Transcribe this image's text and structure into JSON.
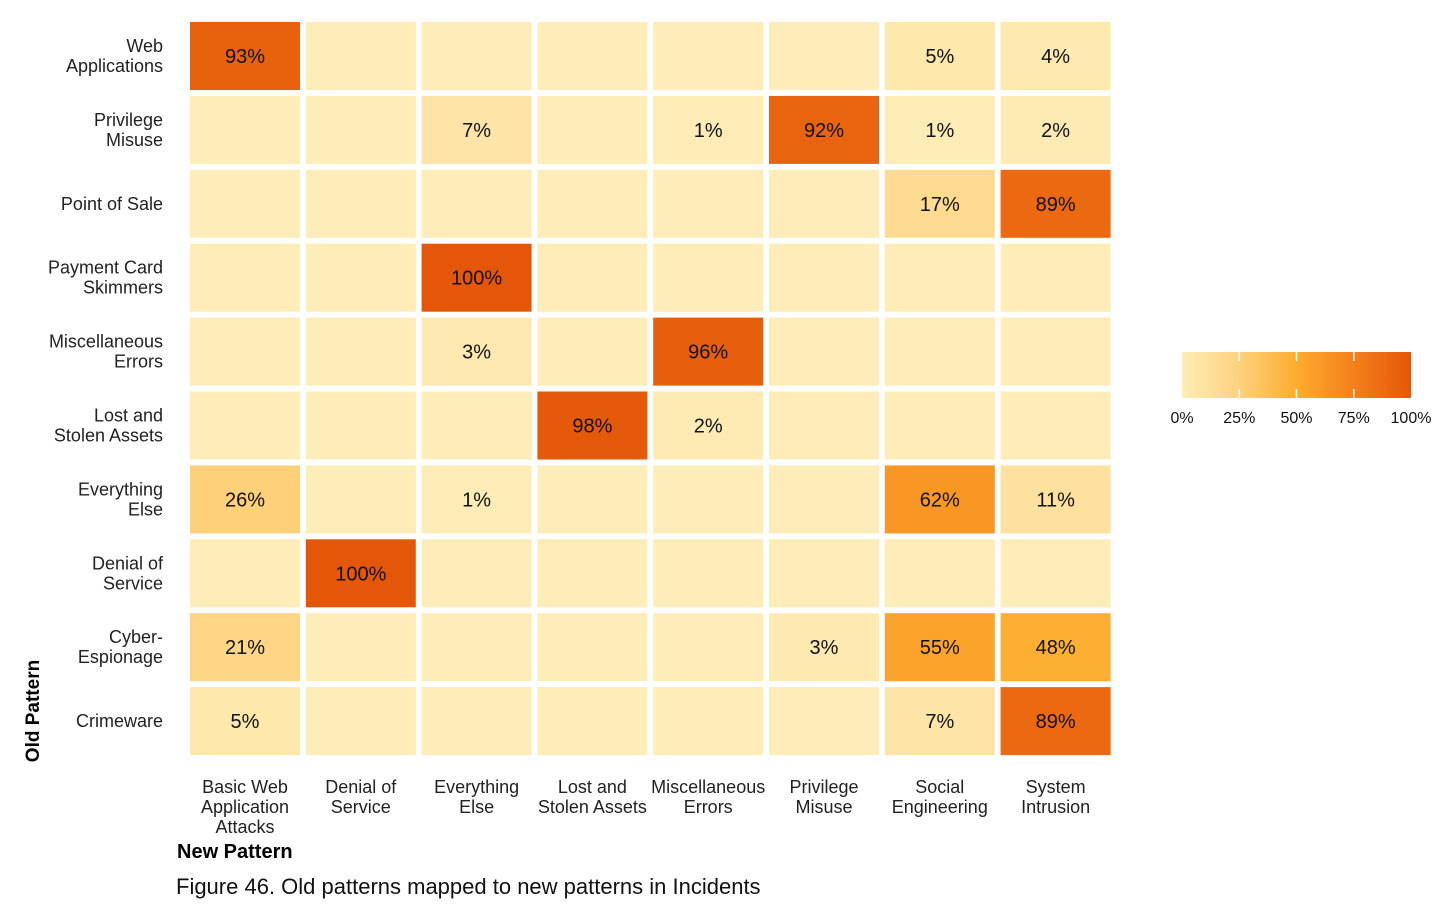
{
  "chart_data": {
    "type": "heatmap",
    "title": "Figure 46. Old patterns mapped to new patterns in Incidents",
    "xlabel": "New Pattern",
    "ylabel": "Old Pattern",
    "x_categories": [
      [
        "Basic Web",
        "Application",
        "Attacks"
      ],
      [
        "Denial of",
        "Service"
      ],
      [
        "Everything",
        "Else"
      ],
      [
        "Lost and",
        "Stolen Assets"
      ],
      [
        "Miscellaneous",
        "Errors"
      ],
      [
        "Privilege",
        "Misuse"
      ],
      [
        "Social",
        "Engineering"
      ],
      [
        "System",
        "Intrusion"
      ]
    ],
    "y_categories": [
      [
        "Web",
        "Applications"
      ],
      [
        "Privilege",
        "Misuse"
      ],
      [
        "Point of Sale"
      ],
      [
        "Payment Card",
        "Skimmers"
      ],
      [
        "Miscellaneous",
        "Errors"
      ],
      [
        "Lost and",
        "Stolen Assets"
      ],
      [
        "Everything",
        "Else"
      ],
      [
        "Denial of",
        "Service"
      ],
      [
        "Cyber-",
        "Espionage"
      ],
      [
        "Crimeware"
      ]
    ],
    "unit": "%",
    "values": [
      [
        93,
        null,
        null,
        null,
        null,
        null,
        5,
        4
      ],
      [
        null,
        null,
        7,
        null,
        1,
        92,
        1,
        2
      ],
      [
        null,
        null,
        null,
        null,
        null,
        null,
        17,
        89
      ],
      [
        null,
        null,
        100,
        null,
        null,
        null,
        null,
        null
      ],
      [
        null,
        null,
        3,
        null,
        96,
        null,
        null,
        null
      ],
      [
        null,
        null,
        null,
        98,
        2,
        null,
        null,
        null
      ],
      [
        26,
        null,
        1,
        null,
        null,
        null,
        62,
        11
      ],
      [
        null,
        100,
        null,
        null,
        null,
        null,
        null,
        null
      ],
      [
        21,
        null,
        null,
        null,
        null,
        3,
        55,
        48
      ],
      [
        5,
        null,
        null,
        null,
        null,
        null,
        7,
        89
      ]
    ],
    "color_scale": {
      "min": 0,
      "max": 100,
      "stops": [
        {
          "value": 0,
          "color": "#feedb8"
        },
        {
          "value": 25,
          "color": "#fed27d"
        },
        {
          "value": 50,
          "color": "#fdac2e"
        },
        {
          "value": 75,
          "color": "#f4801b"
        },
        {
          "value": 100,
          "color": "#e45709"
        }
      ],
      "ticks": [
        "0%",
        "25%",
        "50%",
        "75%",
        "100%"
      ]
    }
  }
}
